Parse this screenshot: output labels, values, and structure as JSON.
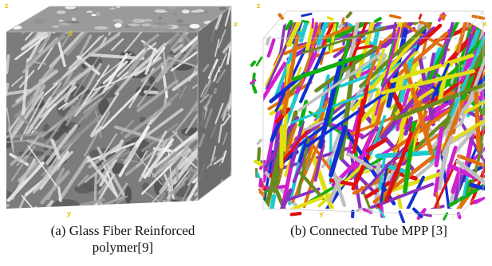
{
  "figure": {
    "panels": [
      {
        "axes": {
          "z": "z",
          "x": "x",
          "y": "y",
          "origin": "0"
        },
        "caption_line1": "(a)  Glass Fiber Reinforced",
        "caption_line2": "polymer[9]"
      },
      {
        "axes": {
          "z": "z",
          "x": "x",
          "y": "Y",
          "origin": "0"
        },
        "caption_line1": "(b)  Connected Tube MPP [3]"
      }
    ]
  },
  "colors": {
    "axis_label": "#e0c200",
    "fiber_palette": [
      "#e01010",
      "#1030d0",
      "#10b010",
      "#d020d0",
      "#20c8d0",
      "#e0e010",
      "#e07010",
      "#8a30c0",
      "#6a8a20",
      "#c0c0c0",
      "#303030"
    ],
    "gray_matrix": "#8a8a8a"
  }
}
